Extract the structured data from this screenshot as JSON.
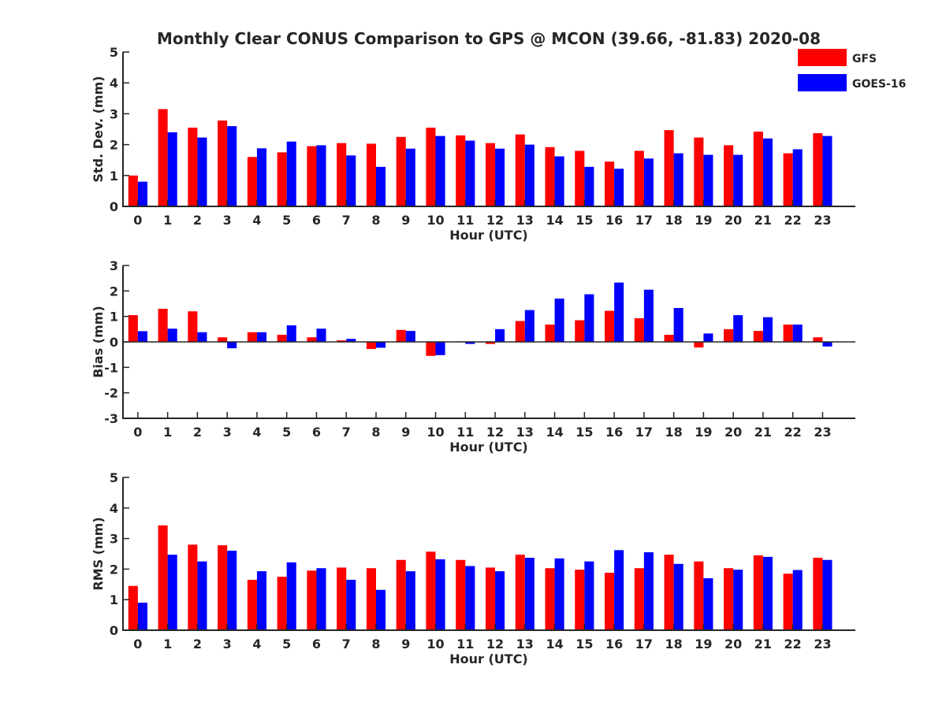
{
  "title": "Monthly Clear CONUS Comparison to GPS @ MCON (39.66, -81.83) 2020-08",
  "legend": {
    "placement": "top-right",
    "items": [
      {
        "name": "GFS",
        "color": "#ff0000"
      },
      {
        "name": "GOES-16",
        "color": "#0000ff"
      }
    ]
  },
  "chart_data": [
    {
      "type": "bar",
      "xlabel": "Hour (UTC)",
      "ylabel": "Std. Dev. (mm)",
      "ylim": [
        0,
        5
      ],
      "yticks": [
        0,
        1,
        2,
        3,
        4,
        5
      ],
      "categories": [
        0,
        1,
        2,
        3,
        4,
        5,
        6,
        7,
        8,
        9,
        10,
        11,
        12,
        13,
        14,
        15,
        16,
        17,
        18,
        19,
        20,
        21,
        22,
        23
      ],
      "series": [
        {
          "name": "GFS",
          "color": "#ff0000",
          "values": [
            1.0,
            3.15,
            2.55,
            2.78,
            1.6,
            1.75,
            1.95,
            2.05,
            2.03,
            2.25,
            2.55,
            2.3,
            2.05,
            2.33,
            1.92,
            1.8,
            1.45,
            1.8,
            2.47,
            2.23,
            1.98,
            2.42,
            1.72,
            2.37
          ]
        },
        {
          "name": "GOES-16",
          "color": "#0000ff",
          "values": [
            0.8,
            2.4,
            2.23,
            2.6,
            1.88,
            2.1,
            1.98,
            1.65,
            1.28,
            1.87,
            2.28,
            2.13,
            1.87,
            2.0,
            1.62,
            1.28,
            1.22,
            1.55,
            1.72,
            1.67,
            1.67,
            2.2,
            1.85,
            2.28
          ]
        }
      ]
    },
    {
      "type": "bar",
      "xlabel": "Hour (UTC)",
      "ylabel": "Bias (mm)",
      "ylim": [
        -3,
        3
      ],
      "yticks": [
        -3,
        -2,
        -1,
        0,
        1,
        2,
        3
      ],
      "categories": [
        0,
        1,
        2,
        3,
        4,
        5,
        6,
        7,
        8,
        9,
        10,
        11,
        12,
        13,
        14,
        15,
        16,
        17,
        18,
        19,
        20,
        21,
        22,
        23
      ],
      "series": [
        {
          "name": "GFS",
          "color": "#ff0000",
          "values": [
            1.05,
            1.3,
            1.2,
            0.18,
            0.38,
            0.28,
            0.18,
            0.06,
            -0.28,
            0.47,
            -0.55,
            0.02,
            -0.08,
            0.82,
            0.68,
            0.85,
            1.22,
            0.93,
            0.28,
            -0.22,
            0.5,
            0.43,
            0.68,
            0.18
          ]
        },
        {
          "name": "GOES-16",
          "color": "#0000ff",
          "values": [
            0.42,
            0.52,
            0.38,
            -0.25,
            0.38,
            0.65,
            0.52,
            0.12,
            -0.23,
            0.43,
            -0.52,
            -0.08,
            0.5,
            1.25,
            1.7,
            1.87,
            2.33,
            2.05,
            1.33,
            0.33,
            1.05,
            0.97,
            0.68,
            -0.18
          ]
        }
      ]
    },
    {
      "type": "bar",
      "xlabel": "Hour (UTC)",
      "ylabel": "RMS (mm)",
      "ylim": [
        0,
        5
      ],
      "yticks": [
        0,
        1,
        2,
        3,
        4,
        5
      ],
      "categories": [
        0,
        1,
        2,
        3,
        4,
        5,
        6,
        7,
        8,
        9,
        10,
        11,
        12,
        13,
        14,
        15,
        16,
        17,
        18,
        19,
        20,
        21,
        22,
        23
      ],
      "series": [
        {
          "name": "GFS",
          "color": "#ff0000",
          "values": [
            1.45,
            3.43,
            2.8,
            2.78,
            1.65,
            1.75,
            1.95,
            2.05,
            2.03,
            2.3,
            2.57,
            2.3,
            2.05,
            2.47,
            2.03,
            1.98,
            1.88,
            2.03,
            2.47,
            2.25,
            2.03,
            2.45,
            1.85,
            2.37
          ]
        },
        {
          "name": "GOES-16",
          "color": "#0000ff",
          "values": [
            0.9,
            2.47,
            2.25,
            2.6,
            1.93,
            2.22,
            2.03,
            1.65,
            1.32,
            1.93,
            2.32,
            2.1,
            1.93,
            2.37,
            2.35,
            2.25,
            2.62,
            2.55,
            2.17,
            1.7,
            1.98,
            2.4,
            1.97,
            2.3
          ]
        }
      ]
    }
  ]
}
